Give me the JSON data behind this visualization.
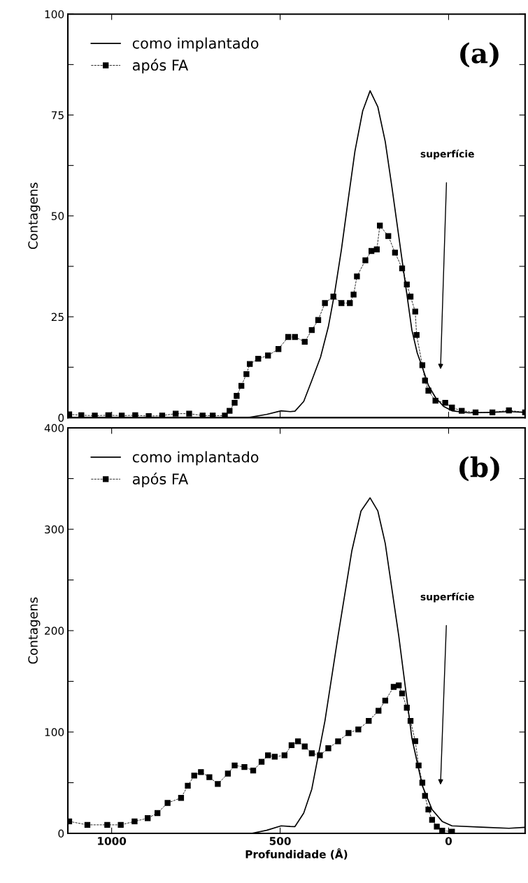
{
  "chart_data": [
    {
      "type": "line",
      "ylabel": "Contagens",
      "xlim": [
        1130,
        -227
      ],
      "xticks": [
        1000,
        500,
        0
      ],
      "ylim": [
        0,
        100
      ],
      "yticks": [
        0,
        {
          "value": 12.5,
          "label": null
        },
        25,
        {
          "value": 37.5,
          "label": null
        },
        50,
        {
          "value": 62.5,
          "label": null
        },
        75,
        {
          "value": 87.5,
          "label": null
        },
        100
      ],
      "tick_labels": "y",
      "legend": "top left",
      "grid": false,
      "annotations": [
        "(a)",
        "superfície"
      ],
      "series": [
        {
          "name": "como implantado",
          "color": "#000000",
          "marker": "none",
          "line_style": "solid",
          "x": [
            1130,
            800,
            650,
            596,
            540,
            497,
            470,
            456,
            430,
            406,
            380,
            357,
            338,
            318,
            298,
            278,
            255,
            233,
            210,
            188,
            168,
            148,
            128,
            109,
            93,
            78,
            60,
            39,
            15,
            -10,
            -60,
            -120,
            -180,
            -227
          ],
          "values": [
            0,
            0,
            0,
            0,
            0.8,
            1.7,
            1.5,
            1.6,
            4,
            9.2,
            15,
            22.5,
            31,
            41.7,
            54,
            66,
            76,
            81,
            77,
            68.4,
            57,
            45,
            33,
            21.7,
            16,
            12.5,
            8,
            5,
            2.8,
            1.7,
            1.2,
            1.3,
            1.5,
            1.3
          ]
        },
        {
          "name": "após FA",
          "color": "#000000",
          "marker": "square",
          "line_style": "dashed",
          "x": [
            1126,
            1090,
            1050,
            1010,
            970,
            930,
            890,
            850,
            810,
            770,
            730,
            700,
            664,
            650,
            635,
            629,
            615,
            600,
            590,
            565,
            536,
            505,
            476,
            456,
            427,
            406,
            387,
            367,
            342,
            318,
            293,
            282,
            272,
            247,
            229,
            213,
            204,
            179,
            159,
            138,
            124,
            113,
            99,
            95,
            78,
            70,
            60,
            39,
            10,
            -10,
            -39,
            -80,
            -130,
            -179,
            -227
          ],
          "values": [
            0.8,
            0.6,
            0.5,
            0.6,
            0.5,
            0.6,
            0.4,
            0.5,
            1.0,
            1.0,
            0.5,
            0.5,
            0.5,
            1.7,
            3.7,
            5.4,
            7.9,
            10.8,
            13.3,
            14.6,
            15.4,
            17,
            20,
            20,
            18.8,
            21.7,
            24.2,
            28.4,
            30,
            28.4,
            28.4,
            30.5,
            35,
            39,
            41.3,
            41.7,
            47.6,
            45,
            40.9,
            37,
            33,
            30,
            26.3,
            20.5,
            13,
            9.2,
            6.7,
            4.2,
            3.7,
            2.5,
            1.7,
            1.3,
            1.3,
            1.8,
            1.3
          ]
        }
      ]
    },
    {
      "type": "line",
      "ylabel": "Contagens",
      "xlabel": "Profundidade (Å)",
      "xlim": [
        1130,
        -227
      ],
      "xticks": [
        1000,
        500,
        0
      ],
      "ylim": [
        0,
        400
      ],
      "yticks": [
        0,
        {
          "value": 50,
          "label": null
        },
        100,
        {
          "value": 150,
          "label": null
        },
        200,
        {
          "value": 250,
          "label": null
        },
        300,
        {
          "value": 350,
          "label": null
        },
        400
      ],
      "legend": "top left",
      "grid": false,
      "annotations": [
        "(b)",
        "superfície"
      ],
      "series": [
        {
          "name": "como implantado",
          "color": "#000000",
          "marker": "none",
          "line_style": "solid",
          "x": [
            1130,
            800,
            585,
            540,
            497,
            470,
            456,
            430,
            406,
            367,
            328,
            287,
            260,
            233,
            210,
            188,
            148,
            109,
            78,
            49,
            19,
            -10,
            -109,
            -179,
            -227
          ],
          "values": [
            0,
            0,
            0,
            3,
            7.4,
            6.8,
            6.7,
            20,
            43.7,
            111,
            195,
            279,
            318,
            331,
            318,
            286,
            195,
            94,
            47,
            23.5,
            11.8,
            7.4,
            6,
            5,
            6
          ]
        },
        {
          "name": "após FA",
          "color": "#000000",
          "marker": "square",
          "line_style": "dashed",
          "x": [
            1126,
            1072,
            1013,
            973,
            932,
            893,
            864,
            834,
            794,
            774,
            755,
            735,
            710,
            685,
            655,
            635,
            606,
            580,
            555,
            536,
            516,
            487,
            466,
            447,
            427,
            406,
            382,
            357,
            328,
            297,
            268,
            237,
            208,
            188,
            163,
            148,
            138,
            124,
            113,
            99,
            89,
            78,
            70,
            60,
            49,
            35,
            19,
            -10
          ],
          "values": [
            11.8,
            8.4,
            8.4,
            8.4,
            11.8,
            15,
            20,
            30,
            35,
            47,
            57,
            60.5,
            55.5,
            48.7,
            59,
            67,
            65.5,
            62,
            70.6,
            77,
            75.6,
            77,
            87,
            90.8,
            85.7,
            79,
            77,
            84,
            90.8,
            99,
            102.5,
            111,
            121,
            131,
            144.5,
            146,
            138,
            124,
            111,
            91,
            67,
            50,
            37,
            23.5,
            13.4,
            6.7,
            2.7,
            1.7
          ]
        }
      ]
    }
  ]
}
